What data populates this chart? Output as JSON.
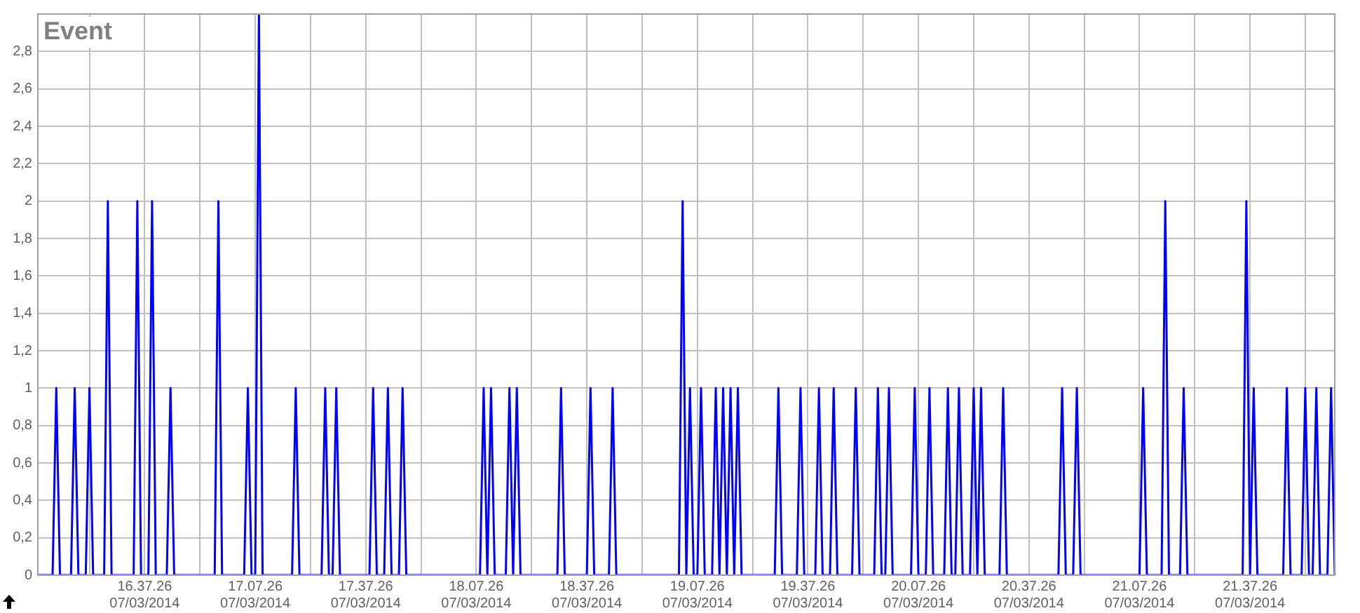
{
  "chart_data": {
    "type": "line",
    "title": "Event",
    "grid": true,
    "legend": false,
    "marker": "none",
    "line_style": "solid",
    "ylim": [
      0,
      3
    ],
    "yticks": [
      0,
      {
        "value": 0.2,
        "label": "0,2"
      },
      {
        "value": 0.4,
        "label": "0,4"
      },
      {
        "value": 0.6,
        "label": "0,6"
      },
      {
        "value": 0.8,
        "label": "0,8"
      },
      1,
      {
        "value": 1.2,
        "label": "1,2"
      },
      {
        "value": 1.4,
        "label": "1,4"
      },
      {
        "value": 1.6,
        "label": "1,6"
      },
      {
        "value": 1.8,
        "label": "1,8"
      },
      2,
      {
        "value": 2.2,
        "label": "2,2"
      },
      {
        "value": 2.4,
        "label": "2,4"
      },
      {
        "value": 2.6,
        "label": "2,6"
      },
      {
        "value": 2.8,
        "label": "2,8"
      }
    ],
    "categories": [
      null,
      null,
      null,
      null,
      null,
      null,
      null,
      null,
      null,
      null,
      null,
      null,
      null,
      null,
      null,
      null,
      null,
      null,
      null,
      null,
      null,
      null,
      null,
      null,
      null,
      null,
      null,
      null,
      null,
      "16.37.26\n07/03/2014",
      null,
      null,
      null,
      null,
      null,
      null,
      null,
      null,
      null,
      null,
      null,
      null,
      null,
      null,
      null,
      null,
      null,
      null,
      null,
      null,
      null,
      null,
      null,
      null,
      null,
      null,
      null,
      null,
      null,
      "17.07.26\n07/03/2014",
      null,
      null,
      null,
      null,
      null,
      null,
      null,
      null,
      null,
      null,
      null,
      null,
      null,
      null,
      null,
      null,
      null,
      null,
      null,
      null,
      null,
      null,
      null,
      null,
      null,
      null,
      null,
      null,
      null,
      "17.37.26\n07/03/2014",
      null,
      null,
      null,
      null,
      null,
      null,
      null,
      null,
      null,
      null,
      null,
      null,
      null,
      null,
      null,
      null,
      null,
      null,
      null,
      null,
      null,
      null,
      null,
      null,
      null,
      null,
      null,
      null,
      null,
      "18.07.26\n07/03/2014",
      null,
      null,
      null,
      null,
      null,
      null,
      null,
      null,
      null,
      null,
      null,
      null,
      null,
      null,
      null,
      null,
      null,
      null,
      null,
      null,
      null,
      null,
      null,
      null,
      null,
      null,
      null,
      null,
      null,
      "18.37.26\n07/03/2014",
      null,
      null,
      null,
      null,
      null,
      null,
      null,
      null,
      null,
      null,
      null,
      null,
      null,
      null,
      null,
      null,
      null,
      null,
      null,
      null,
      null,
      null,
      null,
      null,
      null,
      null,
      null,
      null,
      null,
      "19.07.26\n07/03/2014",
      null,
      null,
      null,
      null,
      null,
      null,
      null,
      null,
      null,
      null,
      null,
      null,
      null,
      null,
      null,
      null,
      null,
      null,
      null,
      null,
      null,
      null,
      null,
      null,
      null,
      null,
      null,
      null,
      null,
      "19.37.26\n07/03/2014",
      null,
      null,
      null,
      null,
      null,
      null,
      null,
      null,
      null,
      null,
      null,
      null,
      null,
      null,
      null,
      null,
      null,
      null,
      null,
      null,
      null,
      null,
      null,
      null,
      null,
      null,
      null,
      null,
      null,
      "20.07.26\n07/03/2014",
      null,
      null,
      null,
      null,
      null,
      null,
      null,
      null,
      null,
      null,
      null,
      null,
      null,
      null,
      null,
      null,
      null,
      null,
      null,
      null,
      null,
      null,
      null,
      null,
      null,
      null,
      null,
      null,
      null,
      "20.37.26\n07/03/2014",
      null,
      null,
      null,
      null,
      null,
      null,
      null,
      null,
      null,
      null,
      null,
      null,
      null,
      null,
      null,
      null,
      null,
      null,
      null,
      null,
      null,
      null,
      null,
      null,
      null,
      null,
      null,
      null,
      null,
      "21.07.26\n07/03/2014",
      null,
      null,
      null,
      null,
      null,
      null,
      null,
      null,
      null,
      null,
      null,
      null,
      null,
      null,
      null,
      null,
      null,
      null,
      null,
      null,
      null,
      null,
      null,
      null,
      null,
      null,
      null,
      null,
      null,
      "21.37.26\n07/03/2014",
      null,
      null,
      null,
      null,
      null,
      null,
      null,
      null,
      null,
      null,
      null,
      null,
      null,
      null,
      null,
      null,
      null,
      null,
      null,
      null,
      null,
      null,
      null
    ],
    "series": [
      {
        "color": "#0000ff",
        "values": [
          0,
          0,
          0,
          0,
          0,
          1,
          0,
          0,
          0,
          0,
          1,
          0,
          0,
          0,
          1,
          0,
          0,
          0,
          0,
          2,
          0,
          0,
          0,
          0,
          0,
          0,
          0,
          2,
          0,
          0,
          0,
          2,
          0,
          0,
          0,
          0,
          1,
          0,
          0,
          0,
          0,
          0,
          0,
          0,
          0,
          0,
          0,
          0,
          0,
          2,
          0,
          0,
          0,
          0,
          0,
          0,
          0,
          1,
          0,
          0,
          3,
          0,
          0,
          0,
          0,
          0,
          0,
          0,
          0,
          0,
          1,
          0,
          0,
          0,
          0,
          0,
          0,
          0,
          1,
          0,
          0,
          1,
          0,
          0,
          0,
          0,
          0,
          0,
          0,
          0,
          0,
          1,
          0,
          0,
          0,
          1,
          0,
          0,
          0,
          1,
          0,
          0,
          0,
          0,
          0,
          0,
          0,
          0,
          0,
          0,
          0,
          0,
          0,
          0,
          0,
          0,
          0,
          0,
          0,
          0,
          0,
          1,
          0,
          1,
          0,
          0,
          0,
          0,
          1,
          0,
          1,
          0,
          0,
          0,
          0,
          0,
          0,
          0,
          0,
          0,
          0,
          0,
          1,
          0,
          0,
          0,
          0,
          0,
          0,
          0,
          1,
          0,
          0,
          0,
          0,
          0,
          1,
          0,
          0,
          0,
          0,
          0,
          0,
          0,
          0,
          0,
          0,
          0,
          0,
          0,
          0,
          0,
          0,
          0,
          0,
          2,
          0,
          1,
          0,
          0,
          1,
          0,
          0,
          0,
          1,
          0,
          1,
          0,
          1,
          0,
          1,
          0,
          0,
          0,
          0,
          0,
          0,
          0,
          0,
          0,
          0,
          1,
          0,
          0,
          0,
          0,
          0,
          1,
          0,
          0,
          0,
          0,
          1,
          0,
          0,
          0,
          1,
          0,
          0,
          0,
          0,
          0,
          1,
          0,
          0,
          0,
          0,
          0,
          1,
          0,
          0,
          1,
          0,
          0,
          0,
          0,
          0,
          0,
          1,
          0,
          0,
          0,
          1,
          0,
          0,
          0,
          0,
          1,
          0,
          0,
          1,
          0,
          0,
          0,
          1,
          0,
          1,
          0,
          0,
          0,
          0,
          0,
          1,
          0,
          0,
          0,
          0,
          0,
          0,
          0,
          0,
          0,
          0,
          0,
          0,
          0,
          0,
          0,
          1,
          0,
          0,
          0,
          1,
          0,
          0,
          0,
          0,
          0,
          0,
          0,
          0,
          0,
          0,
          0,
          0,
          0,
          0,
          0,
          0,
          0,
          1,
          0,
          0,
          0,
          0,
          0,
          2,
          0,
          0,
          0,
          0,
          1,
          0,
          0,
          0,
          0,
          0,
          0,
          0,
          0,
          0,
          0,
          0,
          0,
          0,
          0,
          0,
          0,
          2,
          0,
          1,
          0,
          0,
          0,
          0,
          0,
          0,
          0,
          0,
          1,
          0,
          0,
          0,
          0,
          1,
          0,
          0,
          1,
          0,
          0,
          0,
          1,
          0
        ]
      }
    ]
  }
}
